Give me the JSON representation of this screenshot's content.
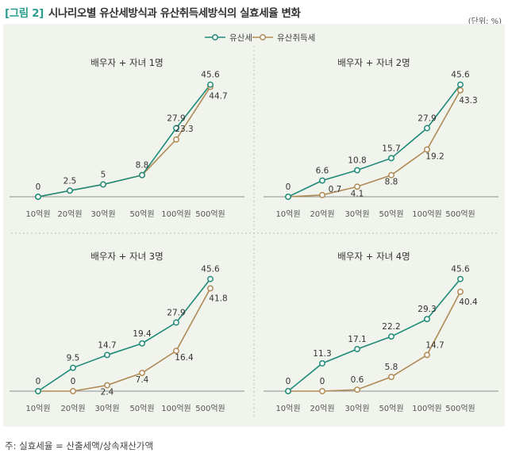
{
  "header": {
    "figure_label": "[그림 2]",
    "title": "시나리오별 유산세방식과 유산취득세방식의 실효세율 변화",
    "unit": "(단위: %)"
  },
  "legend": [
    {
      "name": "유산세",
      "color": "#1f8a78"
    },
    {
      "name": "유산취득세",
      "color": "#b08a56"
    }
  ],
  "note": "주: 실효세율 = 산출세액/상속재산가액",
  "chart_data": [
    {
      "type": "line",
      "title": "배우자 + 자녀 1명",
      "categories": [
        "10억원",
        "20억원",
        "30억원",
        "50억원",
        "100억원",
        "500억원"
      ],
      "ylim": [
        0,
        50
      ],
      "series": [
        {
          "name": "유산세",
          "values": [
            0,
            2.5,
            5.0,
            8.8,
            27.9,
            45.6
          ]
        },
        {
          "name": "유산취득세",
          "values": [
            0,
            2.5,
            5.0,
            8.8,
            23.3,
            44.7
          ]
        }
      ]
    },
    {
      "type": "line",
      "title": "배우자 + 자녀 2명",
      "categories": [
        "10억원",
        "20억원",
        "30억원",
        "50억원",
        "100억원",
        "500억원"
      ],
      "ylim": [
        0,
        50
      ],
      "series": [
        {
          "name": "유산세",
          "values": [
            0,
            6.6,
            10.8,
            15.7,
            27.9,
            45.6
          ]
        },
        {
          "name": "유산취득세",
          "values": [
            0,
            0.7,
            4.1,
            8.8,
            19.2,
            43.3
          ]
        }
      ]
    },
    {
      "type": "line",
      "title": "배우자 + 자녀 3명",
      "categories": [
        "10억원",
        "20억원",
        "30억원",
        "50억원",
        "100억원",
        "500억원"
      ],
      "ylim": [
        0,
        50
      ],
      "series": [
        {
          "name": "유산세",
          "values": [
            0,
            9.5,
            14.7,
            19.4,
            27.9,
            45.6
          ]
        },
        {
          "name": "유산취득세",
          "values": [
            0,
            0,
            2.4,
            7.4,
            16.4,
            41.8
          ]
        }
      ]
    },
    {
      "type": "line",
      "title": "배우자 + 자녀 4명",
      "categories": [
        "10억원",
        "20억원",
        "30억원",
        "50억원",
        "100억원",
        "500억원"
      ],
      "ylim": [
        0,
        50
      ],
      "series": [
        {
          "name": "유산세",
          "values": [
            0,
            11.3,
            17.1,
            22.2,
            29.3,
            45.6
          ]
        },
        {
          "name": "유산취득세",
          "values": [
            0,
            0,
            0.6,
            5.8,
            14.7,
            40.4
          ]
        }
      ]
    }
  ]
}
